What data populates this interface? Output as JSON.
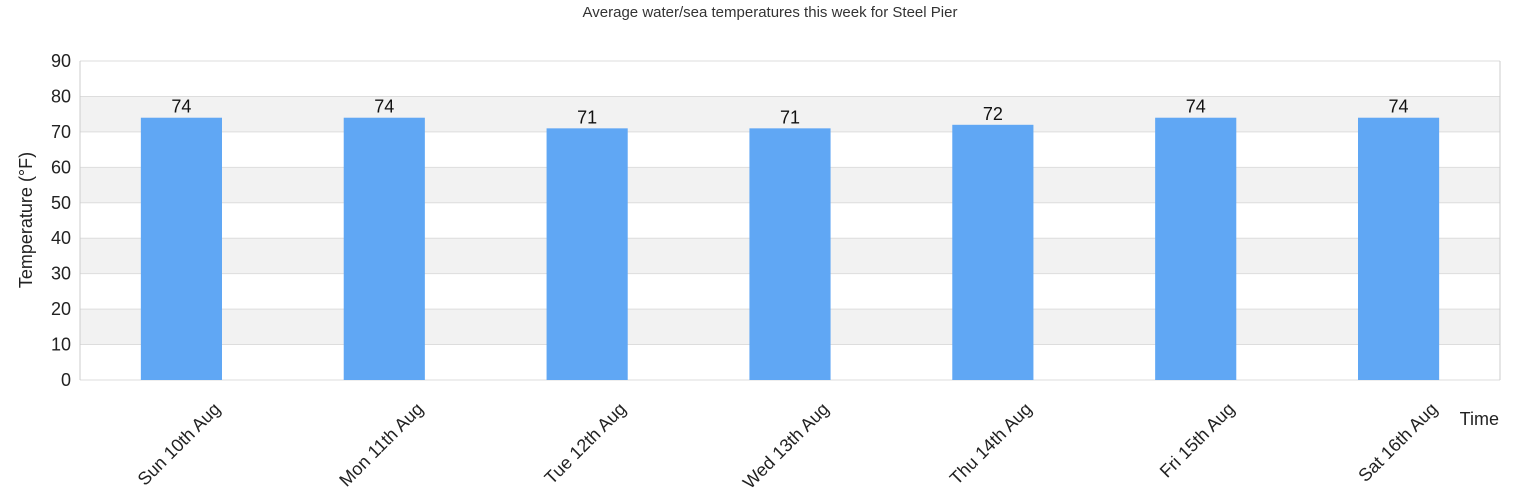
{
  "chart_data": {
    "type": "bar",
    "title": "Average water/sea temperatures this week for Steel Pier",
    "xlabel": "Time",
    "ylabel": "Temperature (°F)",
    "categories": [
      "Sun 10th Aug",
      "Mon 11th Aug",
      "Tue 12th Aug",
      "Wed 13th Aug",
      "Thu 14th Aug",
      "Fri 15th Aug",
      "Sat 16th Aug"
    ],
    "values": [
      74,
      74,
      71,
      71,
      72,
      74,
      74
    ],
    "ylim": [
      0,
      90
    ],
    "yticks": [
      0,
      10,
      20,
      30,
      40,
      50,
      60,
      70,
      80,
      90
    ],
    "grid": true,
    "legend": "none",
    "colors": {
      "bar": "#60a7f4",
      "band": "#f2f2f2",
      "grid": "#dddddd",
      "axis": "#cccccc"
    }
  }
}
